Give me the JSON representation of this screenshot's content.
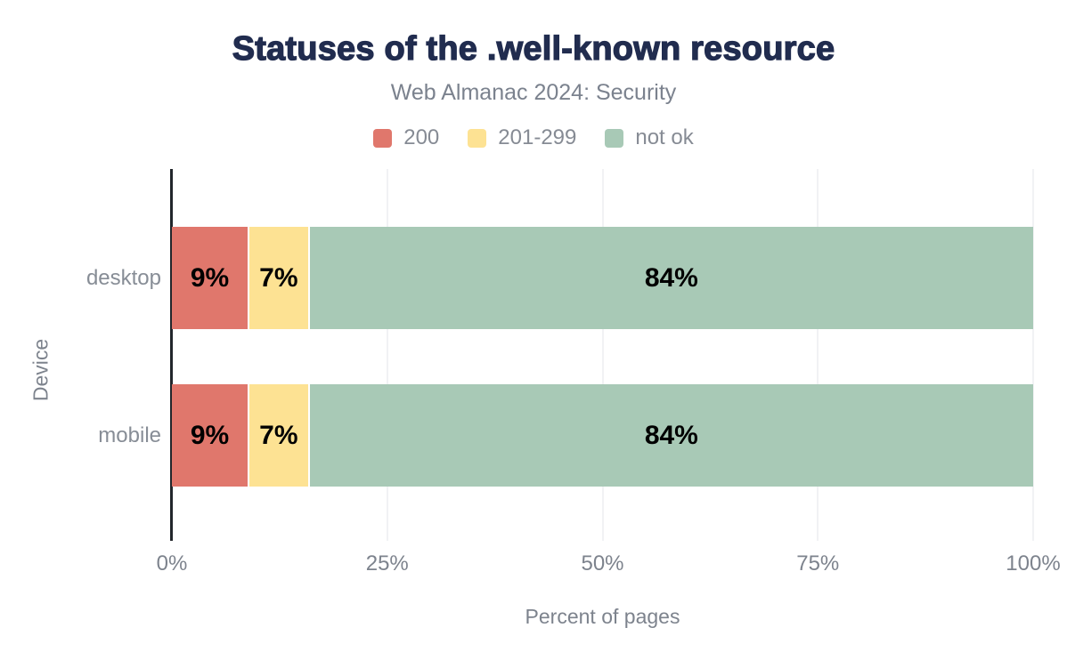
{
  "title": "Statuses of the .well-known resource",
  "subtitle": "Web Almanac 2024: Security",
  "legend": [
    {
      "label": "200",
      "color": "#e0776c"
    },
    {
      "label": "201-299",
      "color": "#fde293"
    },
    {
      "label": "not ok",
      "color": "#a8c9b6"
    }
  ],
  "chart_data": {
    "type": "bar",
    "orientation": "horizontal",
    "stacked": true,
    "title": "Statuses of the .well-known resource",
    "subtitle": "Web Almanac 2024: Security",
    "categories": [
      "desktop",
      "mobile"
    ],
    "series": [
      {
        "name": "200",
        "color": "#e0776c",
        "values": [
          9,
          9
        ]
      },
      {
        "name": "201-299",
        "color": "#fde293",
        "values": [
          7,
          7
        ]
      },
      {
        "name": "not ok",
        "color": "#a8c9b6",
        "values": [
          84,
          84
        ]
      }
    ],
    "xlabel": "Percent of pages",
    "ylabel": "Device",
    "xlim": [
      0,
      100
    ],
    "xticks": [
      {
        "value": 0,
        "label": "0%"
      },
      {
        "value": 25,
        "label": "25%"
      },
      {
        "value": 50,
        "label": "50%"
      },
      {
        "value": 75,
        "label": "75%"
      },
      {
        "value": 100,
        "label": "100%"
      }
    ],
    "value_suffix": "%",
    "grid": "vertical",
    "legend_position": "top",
    "bar_label_color": "#000000",
    "title_color": "#212c4f",
    "axis_text_color": "#7d838d"
  }
}
